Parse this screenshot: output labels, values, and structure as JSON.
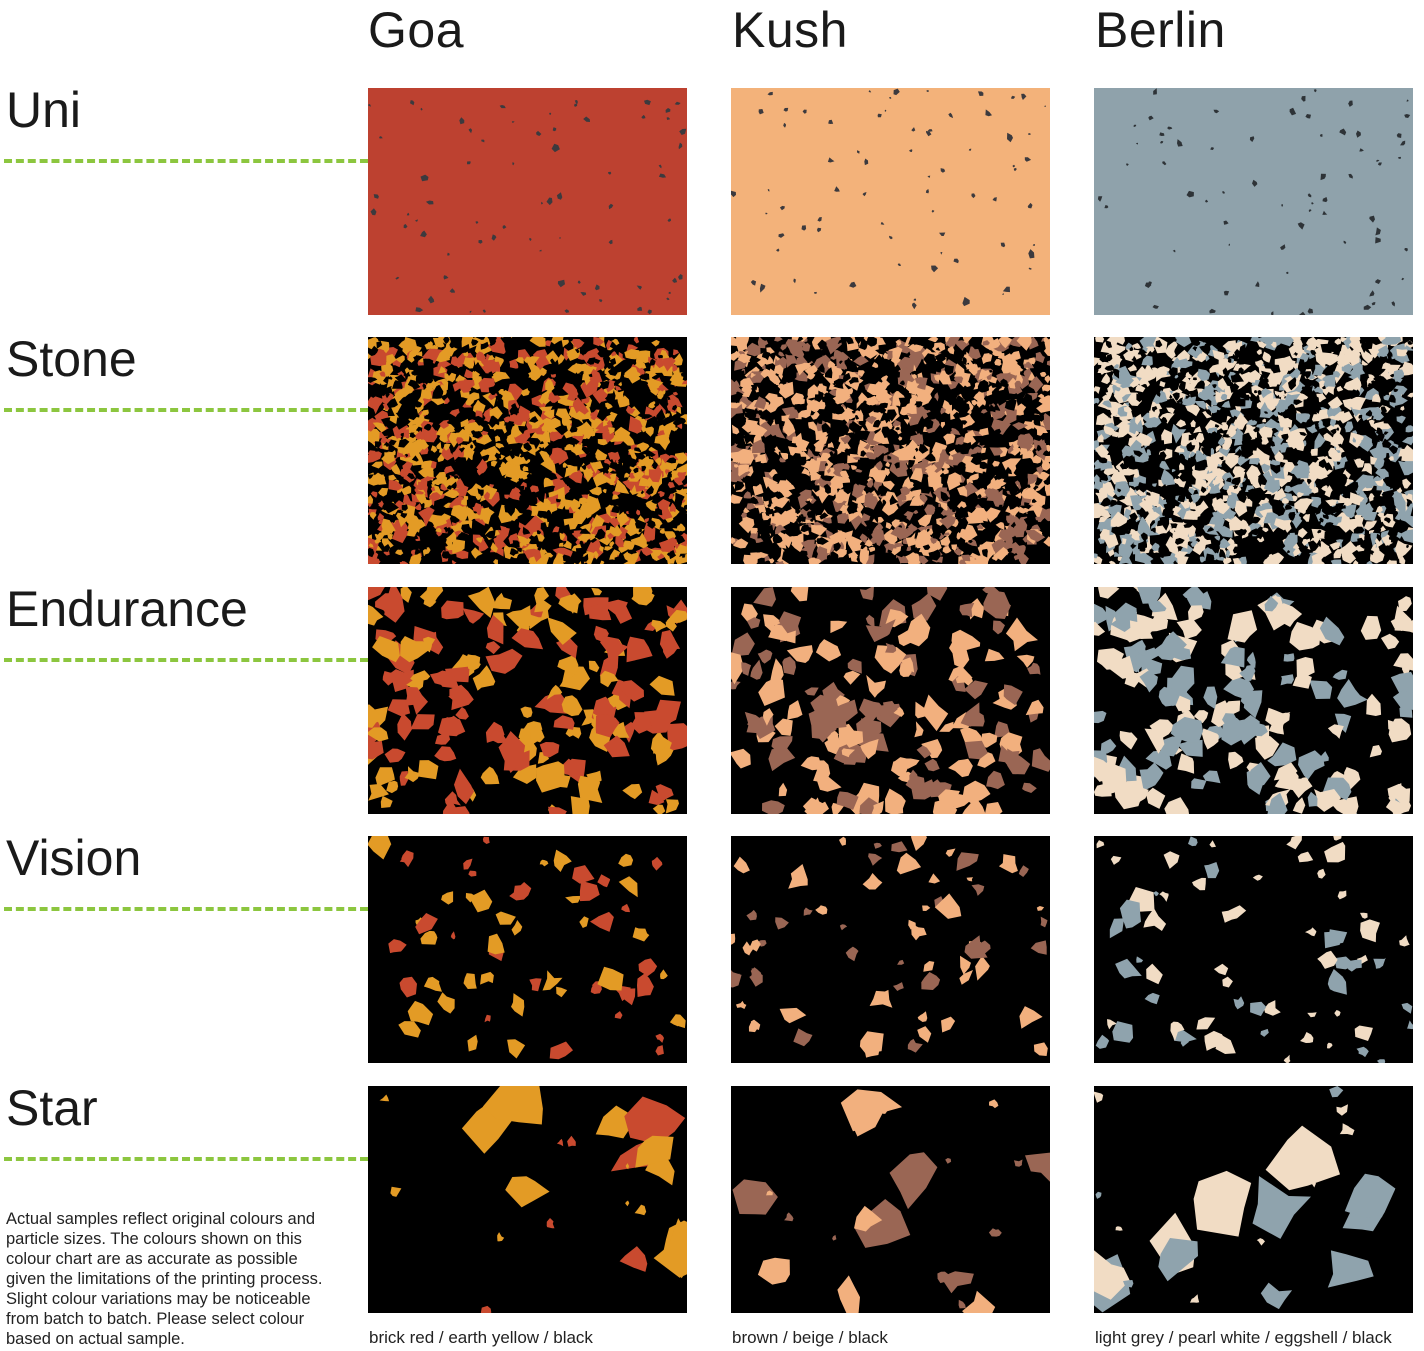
{
  "columns": [
    {
      "name": "Goa",
      "caption": "brick red / earth yellow / black",
      "colors": {
        "base": "#bd4130",
        "a": "#e39b25",
        "b": "#c94a2f",
        "dark": "#000000",
        "speck": "#3c3a3e"
      }
    },
    {
      "name": "Kush",
      "caption": "brown / beige / black",
      "colors": {
        "base": "#f3b27a",
        "a": "#f2b07e",
        "b": "#9a6654",
        "dark": "#000000",
        "speck": "#3c3a3e"
      }
    },
    {
      "name": "Berlin",
      "caption": "light grey / pearl white / eggshell / black",
      "colors": {
        "base": "#8fa2ab",
        "a": "#f1dcc4",
        "b": "#8fa3ad",
        "dark": "#000000",
        "speck": "#2e3337"
      }
    }
  ],
  "rows": [
    {
      "name": "Uni",
      "texture": "uni"
    },
    {
      "name": "Stone",
      "texture": "stone"
    },
    {
      "name": "Endurance",
      "texture": "endurance"
    },
    {
      "name": "Vision",
      "texture": "vision"
    },
    {
      "name": "Star",
      "texture": "star"
    }
  ],
  "note": "Actual samples reflect original colours and particle sizes. The colours shown on this colour chart are as accurate as possible given the limitations of the printing process. Slight colour variations may be noticeable from batch to batch. Please select colour based on actual sample.",
  "accent_color": "#8cc63f"
}
